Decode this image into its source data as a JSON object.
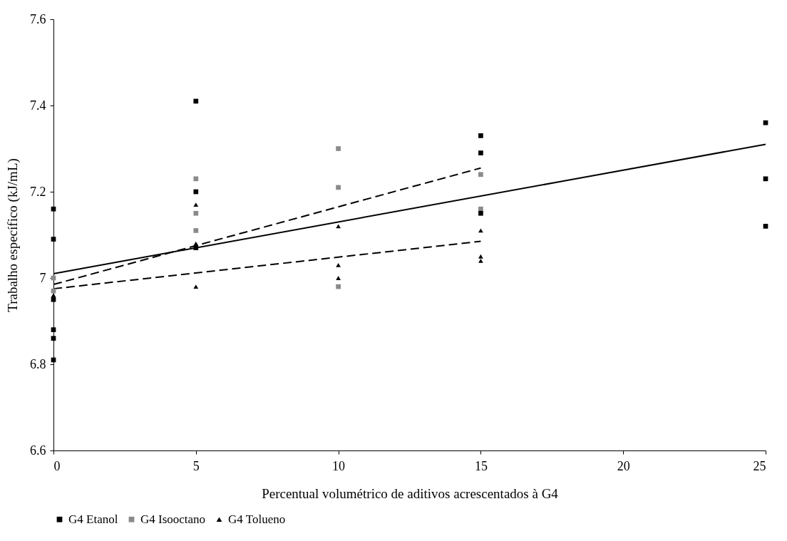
{
  "chart_data": {
    "type": "scatter",
    "xlabel": "Percentual volumétrico de aditivos acrescentados à G4",
    "ylabel": "Trabalho específico (kJ/mL)",
    "xlim": [
      0,
      25
    ],
    "xticks": [
      0,
      5,
      10,
      15,
      20,
      25
    ],
    "ylim": [
      6.6,
      7.6
    ],
    "yticks": [
      6.6,
      6.8,
      7,
      7.2,
      7.4,
      7.6
    ],
    "grid": false,
    "legend": "bottom",
    "series": [
      {
        "name": "G4 Etanol",
        "marker": "square",
        "color": "#000000",
        "x": [
          0,
          0,
          0,
          0,
          0,
          0,
          5,
          5,
          5,
          15,
          15,
          15,
          25,
          25,
          25
        ],
        "values": [
          7.16,
          7.09,
          6.95,
          6.88,
          6.86,
          6.81,
          7.41,
          7.2,
          7.07,
          7.33,
          7.29,
          7.15,
          7.36,
          7.23,
          7.12
        ]
      },
      {
        "name": "G4 Isooctano",
        "marker": "square",
        "color": "#8a8a8a",
        "x": [
          0,
          0,
          5,
          5,
          5,
          10,
          10,
          10,
          15,
          15
        ],
        "values": [
          7.0,
          6.97,
          7.23,
          7.15,
          7.11,
          7.3,
          7.21,
          6.98,
          7.24,
          7.16
        ]
      },
      {
        "name": "G4 Tolueno",
        "marker": "triangle",
        "color": "#000000",
        "x": [
          0,
          5,
          5,
          5,
          10,
          10,
          10,
          15,
          15,
          15
        ],
        "values": [
          6.96,
          7.17,
          7.08,
          6.98,
          7.12,
          7.03,
          7.0,
          7.11,
          7.05,
          7.04
        ]
      },
      {
        "type": "line",
        "line_style": "solid",
        "color": "#000000",
        "x": [
          0,
          25
        ],
        "values": [
          7.01,
          7.31
        ]
      },
      {
        "type": "line",
        "line_style": "dashed",
        "color": "#000000",
        "x": [
          0,
          15
        ],
        "values": [
          6.985,
          7.255
        ]
      },
      {
        "type": "line",
        "line_style": "dashed",
        "color": "#000000",
        "x": [
          0,
          15
        ],
        "values": [
          6.975,
          7.085
        ]
      }
    ]
  }
}
